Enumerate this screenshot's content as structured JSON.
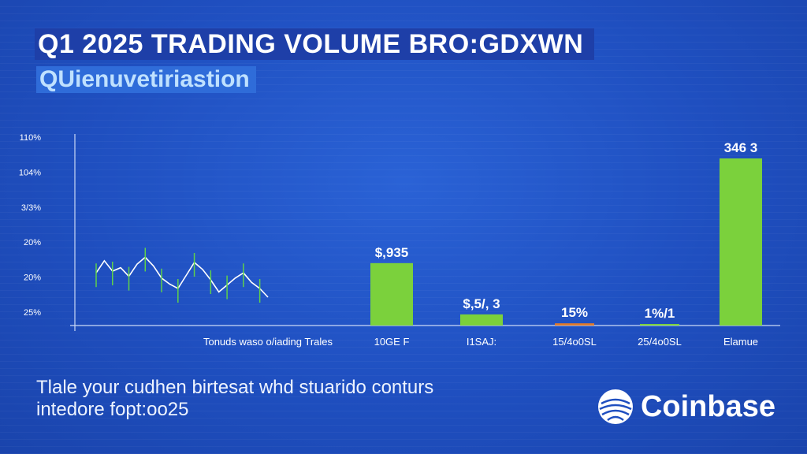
{
  "header": {
    "title": "Q1 2025 TRADING VOLUME BRO:GDXWN",
    "subtitle": "QUienuvetiriastion"
  },
  "footer": {
    "line1": "Tlale your cudhen birtesat whd stuarido conturs",
    "line2": "intedore fopt:oo25"
  },
  "brand": {
    "name": "Coinbase",
    "logo_icon": "coinbase-globe-icon"
  },
  "colors": {
    "background": "#2050c0",
    "bar": "#7bd13c",
    "bar_orange": "#e07a2c",
    "line": "#ffffff",
    "candle": "#5fd14a",
    "title_bg": "#1e3fa8"
  },
  "chart_data": {
    "type": "bar",
    "y_tick_labels": [
      "110%",
      "104%",
      "3/3%",
      "20%",
      "20%",
      "25%"
    ],
    "categories": [
      "Tonuds waso o/iading Trales",
      "10GE F",
      "I1SAJ:",
      "15/4o0SL",
      "25/4o0SL",
      "Elamue"
    ],
    "values": [
      null,
      0.28,
      0.05,
      0.01,
      0.005,
      0.75
    ],
    "value_labels": [
      "",
      "$,935",
      "$,5/, 3",
      "15%",
      "1%/1",
      "346 3"
    ],
    "sparkline": [
      58,
      72,
      60,
      64,
      54,
      68,
      76,
      66,
      52,
      45,
      40,
      55,
      70,
      62,
      50,
      36,
      44,
      52,
      58,
      47,
      40,
      30
    ],
    "grid": false,
    "legend": "none"
  }
}
